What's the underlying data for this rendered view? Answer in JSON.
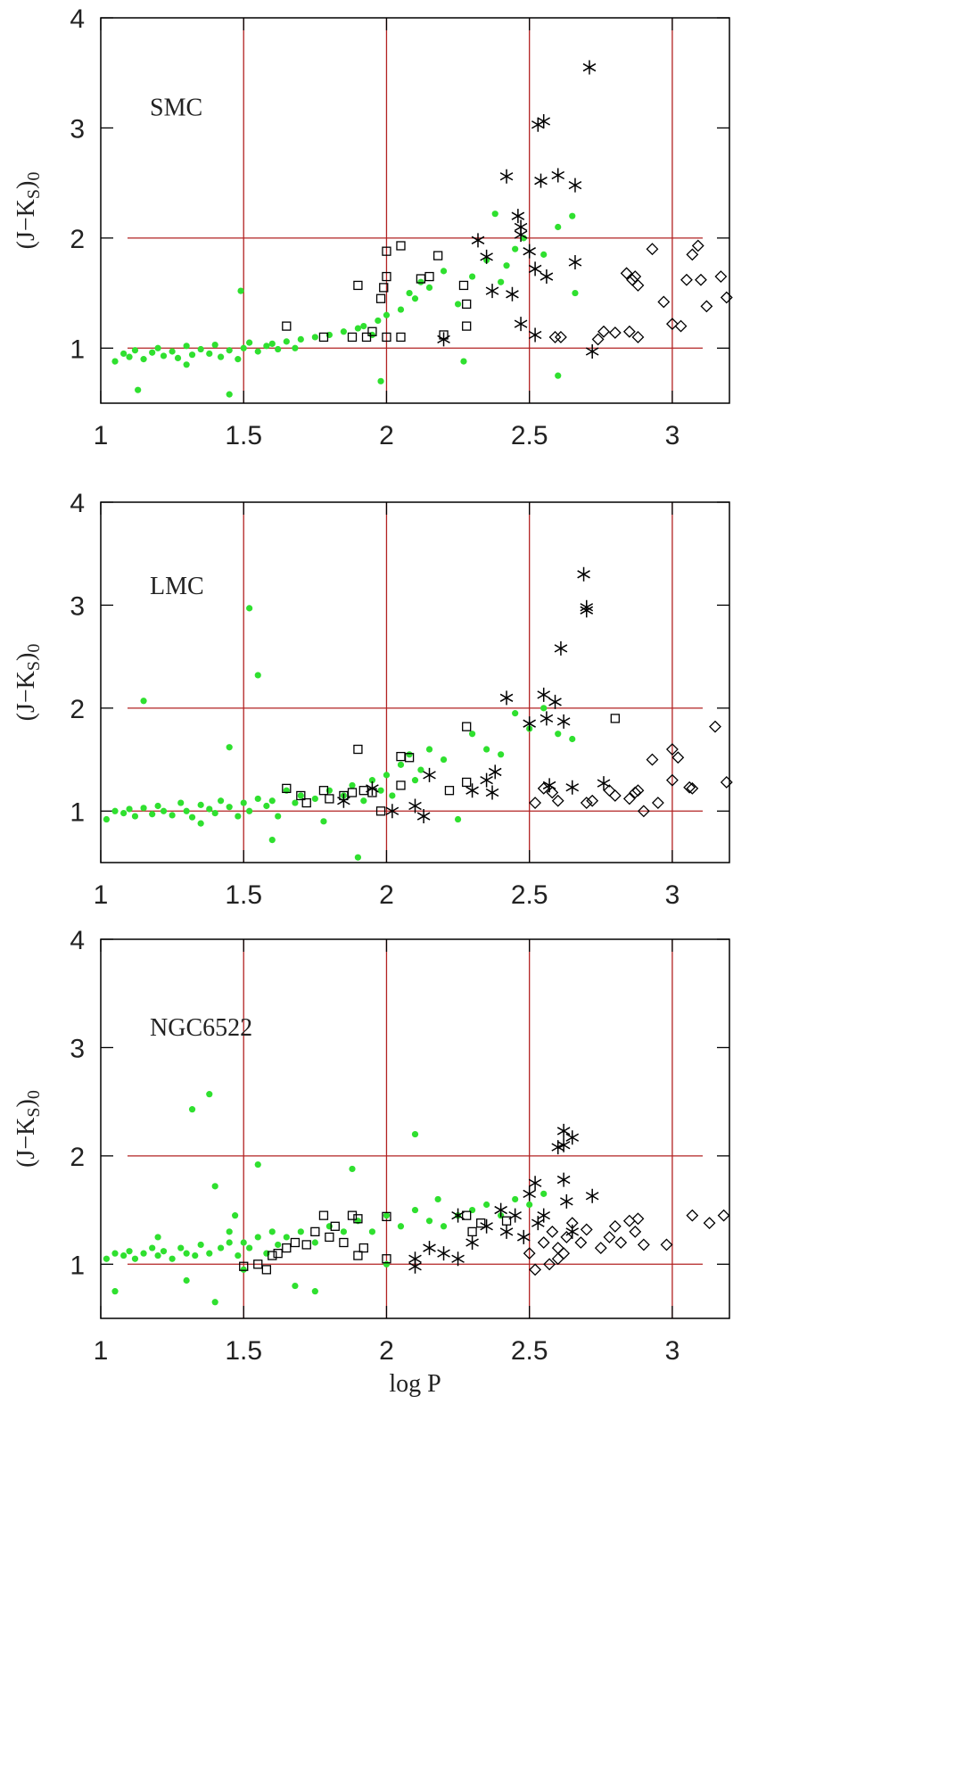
{
  "chart_data": [
    {
      "type": "scatter",
      "annotation": "SMC",
      "ylabel": [
        "(J−K",
        "S",
        ")",
        "0"
      ],
      "xlim": [
        1,
        3.2
      ],
      "ylim": [
        0.5,
        4
      ],
      "xticks": [
        1,
        1.5,
        2,
        2.5,
        3
      ],
      "yticks": [
        1,
        2,
        3,
        4
      ],
      "vlines": [
        1.5,
        2,
        2.5,
        3
      ],
      "hlines": [
        1,
        2
      ],
      "refline_color": "#b22222",
      "series": [
        {
          "marker": "circle",
          "color": "#2fe02f",
          "x": [
            1.05,
            1.08,
            1.1,
            1.12,
            1.15,
            1.18,
            1.2,
            1.22,
            1.25,
            1.27,
            1.3,
            1.32,
            1.35,
            1.38,
            1.4,
            1.42,
            1.45,
            1.48,
            1.5,
            1.52,
            1.55,
            1.58,
            1.6,
            1.62,
            1.65,
            1.68,
            1.7,
            1.75,
            1.8,
            1.85,
            1.9,
            1.92,
            1.95,
            1.97,
            2.0,
            2.05,
            2.08,
            2.1,
            2.12,
            2.15,
            2.2,
            2.25,
            2.3,
            2.35,
            2.4,
            2.42,
            2.45,
            2.48,
            2.55,
            2.6,
            2.65,
            2.66,
            2.38,
            1.49,
            1.13,
            1.45,
            1.98,
            2.6,
            2.27,
            1.3
          ],
          "values": [
            0.88,
            0.95,
            0.92,
            0.98,
            0.9,
            0.96,
            1.0,
            0.93,
            0.97,
            0.91,
            1.02,
            0.94,
            0.99,
            0.95,
            1.03,
            0.92,
            0.98,
            0.9,
            1.0,
            1.05,
            0.97,
            1.02,
            1.04,
            0.99,
            1.06,
            1.0,
            1.08,
            1.1,
            1.12,
            1.15,
            1.18,
            1.2,
            1.12,
            1.25,
            1.3,
            1.35,
            1.5,
            1.45,
            1.6,
            1.55,
            1.7,
            1.4,
            1.65,
            1.8,
            1.6,
            1.75,
            1.9,
            2.0,
            1.85,
            2.1,
            2.2,
            1.5,
            2.22,
            1.52,
            0.62,
            0.58,
            0.7,
            0.75,
            0.88,
            0.85
          ]
        },
        {
          "marker": "square",
          "color": "#000000",
          "x": [
            1.65,
            1.78,
            1.88,
            1.9,
            1.93,
            1.98,
            1.99,
            2.0,
            2.0,
            2.05,
            2.05,
            2.12,
            2.15,
            2.18,
            2.2,
            2.27,
            2.28,
            2.28,
            2.0,
            1.95
          ],
          "values": [
            1.2,
            1.1,
            1.1,
            1.57,
            1.1,
            1.45,
            1.55,
            1.65,
            1.88,
            1.93,
            1.1,
            1.63,
            1.65,
            1.84,
            1.12,
            1.57,
            1.4,
            1.2,
            1.1,
            1.15
          ]
        },
        {
          "marker": "asterisk",
          "color": "#000000",
          "x": [
            2.71,
            2.53,
            2.55,
            2.42,
            2.54,
            2.6,
            2.66,
            2.46,
            2.47,
            2.47,
            2.32,
            2.35,
            2.5,
            2.52,
            2.56,
            2.66,
            2.37,
            2.44,
            2.47,
            2.52,
            2.2,
            2.72
          ],
          "values": [
            3.55,
            3.03,
            3.06,
            2.56,
            2.52,
            2.57,
            2.48,
            2.2,
            2.1,
            2.03,
            1.98,
            1.83,
            1.88,
            1.72,
            1.65,
            1.78,
            1.52,
            1.49,
            1.22,
            1.12,
            1.08,
            0.97
          ]
        },
        {
          "marker": "diamond",
          "color": "#000000",
          "x": [
            2.59,
            2.61,
            2.74,
            2.76,
            2.8,
            2.84,
            2.86,
            2.87,
            2.88,
            2.85,
            2.88,
            2.93,
            2.97,
            3.0,
            3.03,
            3.05,
            3.07,
            3.09,
            3.1,
            3.12,
            3.17,
            3.19
          ],
          "values": [
            1.1,
            1.1,
            1.08,
            1.15,
            1.14,
            1.68,
            1.62,
            1.65,
            1.57,
            1.15,
            1.1,
            1.9,
            1.42,
            1.22,
            1.2,
            1.62,
            1.85,
            1.93,
            1.62,
            1.38,
            1.65,
            1.46
          ]
        }
      ]
    },
    {
      "type": "scatter",
      "annotation": "LMC",
      "ylabel": [
        "(J−K",
        "S",
        ")",
        "0"
      ],
      "xlim": [
        1,
        3.2
      ],
      "ylim": [
        0.5,
        4
      ],
      "xticks": [
        1,
        1.5,
        2,
        2.5,
        3
      ],
      "yticks": [
        1,
        2,
        3,
        4
      ],
      "vlines": [
        1.5,
        2,
        2.5,
        3
      ],
      "hlines": [
        1,
        2
      ],
      "refline_color": "#b22222",
      "series": [
        {
          "marker": "circle",
          "color": "#2fe02f",
          "x": [
            1.02,
            1.05,
            1.08,
            1.1,
            1.12,
            1.15,
            1.15,
            1.18,
            1.2,
            1.22,
            1.25,
            1.28,
            1.3,
            1.32,
            1.35,
            1.38,
            1.4,
            1.42,
            1.45,
            1.45,
            1.48,
            1.5,
            1.52,
            1.52,
            1.55,
            1.55,
            1.58,
            1.6,
            1.62,
            1.65,
            1.68,
            1.7,
            1.75,
            1.78,
            1.8,
            1.85,
            1.88,
            1.9,
            1.92,
            1.95,
            1.98,
            2.0,
            2.02,
            2.05,
            2.08,
            2.1,
            2.12,
            2.15,
            2.2,
            2.25,
            2.3,
            2.35,
            2.4,
            2.45,
            2.5,
            2.55,
            2.6,
            2.65,
            1.35,
            1.6
          ],
          "values": [
            0.92,
            1.0,
            0.98,
            1.02,
            0.95,
            2.07,
            1.03,
            0.97,
            1.05,
            1.0,
            0.96,
            1.08,
            1.0,
            0.94,
            1.06,
            1.02,
            0.98,
            1.1,
            1.62,
            1.04,
            0.95,
            1.08,
            2.97,
            1.0,
            2.32,
            1.12,
            1.05,
            1.1,
            0.95,
            1.2,
            1.08,
            1.15,
            1.12,
            0.9,
            1.2,
            1.15,
            1.25,
            0.55,
            1.1,
            1.3,
            1.2,
            1.35,
            1.15,
            1.45,
            1.55,
            1.3,
            1.4,
            1.6,
            1.5,
            0.92,
            1.75,
            1.6,
            1.55,
            1.95,
            1.8,
            2.0,
            1.75,
            1.7,
            0.88,
            0.72
          ]
        },
        {
          "marker": "square",
          "color": "#000000",
          "x": [
            1.65,
            1.7,
            1.72,
            1.78,
            1.8,
            1.85,
            1.88,
            1.9,
            1.92,
            1.95,
            1.98,
            2.05,
            2.05,
            2.08,
            2.22,
            2.28,
            2.28,
            2.8
          ],
          "values": [
            1.22,
            1.15,
            1.08,
            1.2,
            1.12,
            1.15,
            1.18,
            1.6,
            1.2,
            1.18,
            1.0,
            1.53,
            1.25,
            1.52,
            1.2,
            1.82,
            1.28,
            1.9
          ]
        },
        {
          "marker": "asterisk",
          "color": "#000000",
          "x": [
            2.69,
            2.7,
            2.7,
            2.61,
            2.42,
            2.55,
            2.59,
            2.62,
            2.56,
            2.5,
            2.38,
            2.35,
            2.3,
            2.37,
            2.15,
            2.1,
            2.13,
            2.02,
            1.85,
            1.95,
            2.57,
            2.65,
            2.76
          ],
          "values": [
            3.3,
            2.98,
            2.95,
            2.58,
            2.1,
            2.13,
            2.06,
            1.87,
            1.9,
            1.85,
            1.38,
            1.3,
            1.2,
            1.18,
            1.35,
            1.05,
            0.95,
            1.0,
            1.1,
            1.22,
            1.25,
            1.23,
            1.27
          ]
        },
        {
          "marker": "diamond",
          "color": "#000000",
          "x": [
            2.52,
            2.55,
            2.58,
            2.6,
            2.7,
            2.72,
            2.78,
            2.8,
            2.85,
            2.87,
            2.88,
            2.9,
            2.93,
            2.95,
            3.0,
            3.02,
            3.0,
            3.06,
            3.07,
            3.15,
            3.19
          ],
          "values": [
            1.08,
            1.22,
            1.18,
            1.1,
            1.08,
            1.1,
            1.2,
            1.15,
            1.12,
            1.18,
            1.2,
            1.0,
            1.5,
            1.08,
            1.6,
            1.52,
            1.3,
            1.23,
            1.22,
            1.82,
            1.28
          ]
        }
      ]
    },
    {
      "type": "scatter",
      "annotation": "NGC6522",
      "ylabel": [
        "(J−K",
        "S",
        ")",
        "0"
      ],
      "xlabel": "log P",
      "xlim": [
        1,
        3.2
      ],
      "ylim": [
        0.5,
        4
      ],
      "xticks": [
        1,
        1.5,
        2,
        2.5,
        3
      ],
      "yticks": [
        1,
        2,
        3,
        4
      ],
      "vlines": [
        1.5,
        2,
        2.5,
        3
      ],
      "hlines": [
        1,
        2
      ],
      "refline_color": "#b22222",
      "series": [
        {
          "marker": "circle",
          "color": "#2fe02f",
          "x": [
            1.02,
            1.05,
            1.08,
            1.1,
            1.12,
            1.15,
            1.18,
            1.2,
            1.22,
            1.25,
            1.28,
            1.3,
            1.32,
            1.33,
            1.35,
            1.38,
            1.38,
            1.4,
            1.4,
            1.42,
            1.45,
            1.47,
            1.48,
            1.5,
            1.52,
            1.55,
            1.55,
            1.58,
            1.6,
            1.62,
            1.65,
            1.7,
            1.75,
            1.8,
            1.85,
            1.88,
            1.9,
            1.95,
            2.0,
            2.05,
            2.1,
            2.1,
            2.15,
            2.18,
            2.2,
            2.25,
            2.3,
            2.35,
            2.4,
            2.45,
            2.5,
            2.55,
            1.05,
            1.3,
            1.68,
            1.75,
            1.5,
            2.0,
            1.2,
            1.45
          ],
          "values": [
            1.05,
            1.1,
            1.08,
            1.12,
            1.05,
            1.1,
            1.15,
            1.08,
            1.12,
            1.05,
            1.15,
            1.1,
            2.43,
            1.08,
            1.18,
            2.57,
            1.1,
            1.72,
            0.65,
            1.15,
            1.2,
            1.45,
            1.08,
            1.2,
            1.15,
            1.92,
            1.25,
            1.1,
            1.3,
            1.18,
            1.25,
            1.3,
            1.2,
            1.35,
            1.3,
            1.88,
            1.4,
            1.3,
            1.45,
            1.35,
            2.2,
            1.5,
            1.4,
            1.6,
            1.35,
            1.45,
            1.5,
            1.55,
            1.45,
            1.6,
            1.55,
            1.65,
            0.75,
            0.85,
            0.8,
            0.75,
            0.95,
            1.0,
            1.25,
            1.3
          ]
        },
        {
          "marker": "square",
          "color": "#000000",
          "x": [
            1.5,
            1.55,
            1.58,
            1.6,
            1.62,
            1.65,
            1.68,
            1.72,
            1.75,
            1.78,
            1.8,
            1.82,
            1.85,
            1.88,
            1.9,
            1.92,
            2.0,
            2.0,
            1.9,
            2.28,
            2.3,
            2.33,
            2.42
          ],
          "values": [
            0.98,
            1.0,
            0.95,
            1.08,
            1.1,
            1.15,
            1.2,
            1.18,
            1.3,
            1.45,
            1.25,
            1.35,
            1.2,
            1.45,
            1.42,
            1.15,
            1.44,
            1.05,
            1.08,
            1.45,
            1.3,
            1.38,
            1.4
          ]
        },
        {
          "marker": "asterisk",
          "color": "#000000",
          "x": [
            2.62,
            2.65,
            2.6,
            2.62,
            2.52,
            2.62,
            2.72,
            2.5,
            2.63,
            2.4,
            2.45,
            2.35,
            2.3,
            2.25,
            2.42,
            2.48,
            2.55,
            2.2,
            2.15,
            2.1,
            2.1,
            2.25,
            2.65,
            2.53
          ],
          "values": [
            2.23,
            2.17,
            2.08,
            2.1,
            1.75,
            1.78,
            1.63,
            1.65,
            1.58,
            1.5,
            1.45,
            1.35,
            1.2,
            1.45,
            1.3,
            1.25,
            1.45,
            1.1,
            1.15,
            1.05,
            0.98,
            1.05,
            1.3,
            1.38
          ]
        },
        {
          "marker": "diamond",
          "color": "#000000",
          "x": [
            2.5,
            2.52,
            2.55,
            2.57,
            2.6,
            2.6,
            2.62,
            2.63,
            2.65,
            2.68,
            2.7,
            2.75,
            2.78,
            2.8,
            2.82,
            2.85,
            2.87,
            2.88,
            2.9,
            2.98,
            3.07,
            3.13,
            3.18,
            2.58
          ],
          "values": [
            1.1,
            0.95,
            1.2,
            1.0,
            1.05,
            1.15,
            1.1,
            1.25,
            1.38,
            1.2,
            1.32,
            1.15,
            1.25,
            1.35,
            1.2,
            1.4,
            1.3,
            1.42,
            1.18,
            1.18,
            1.45,
            1.38,
            1.45,
            1.3
          ]
        }
      ]
    }
  ]
}
